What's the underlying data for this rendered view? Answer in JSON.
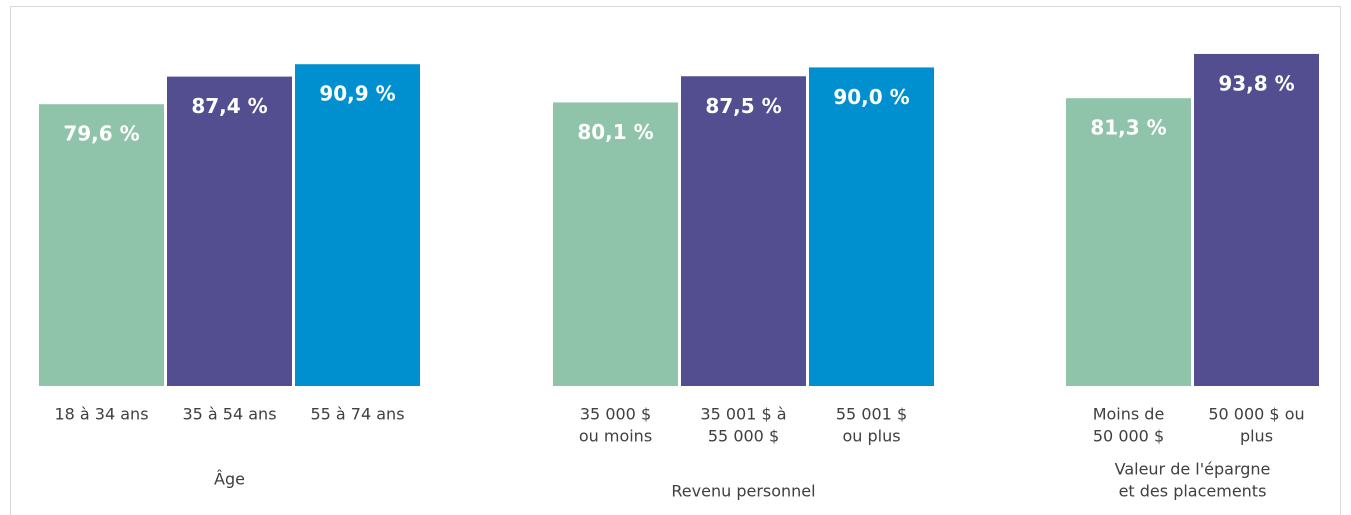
{
  "chart_data": {
    "type": "bar",
    "ylim": [
      0,
      100
    ],
    "colors": [
      "#8fc4ab",
      "#534e90",
      "#0090d0"
    ],
    "groups": [
      {
        "label": [
          "Âge"
        ],
        "categories": [
          [
            "18 à 34 ans"
          ],
          [
            "35 à 54 ans"
          ],
          [
            "55 à 74 ans"
          ]
        ],
        "values": [
          79.6,
          87.4,
          90.9
        ],
        "value_labels": [
          "79,6 %",
          "87,4 %",
          "90,9 %"
        ]
      },
      {
        "label": [
          "Revenu personnel"
        ],
        "categories": [
          [
            "35 000 $",
            "ou moins"
          ],
          [
            "35 001 $ à",
            "55 000 $"
          ],
          [
            "55 001 $",
            "ou plus"
          ]
        ],
        "values": [
          80.1,
          87.5,
          90.0
        ],
        "value_labels": [
          "80,1 %",
          "87,5 %",
          "90,0 %"
        ]
      },
      {
        "label": [
          "Valeur de l'épargne",
          "et des placements"
        ],
        "categories": [
          [
            "Moins de",
            "50 000 $"
          ],
          [
            "50 000 $ ou",
            "plus"
          ]
        ],
        "values": [
          81.3,
          93.8
        ],
        "value_labels": [
          "81,3 %",
          "93,8 %"
        ]
      }
    ]
  }
}
